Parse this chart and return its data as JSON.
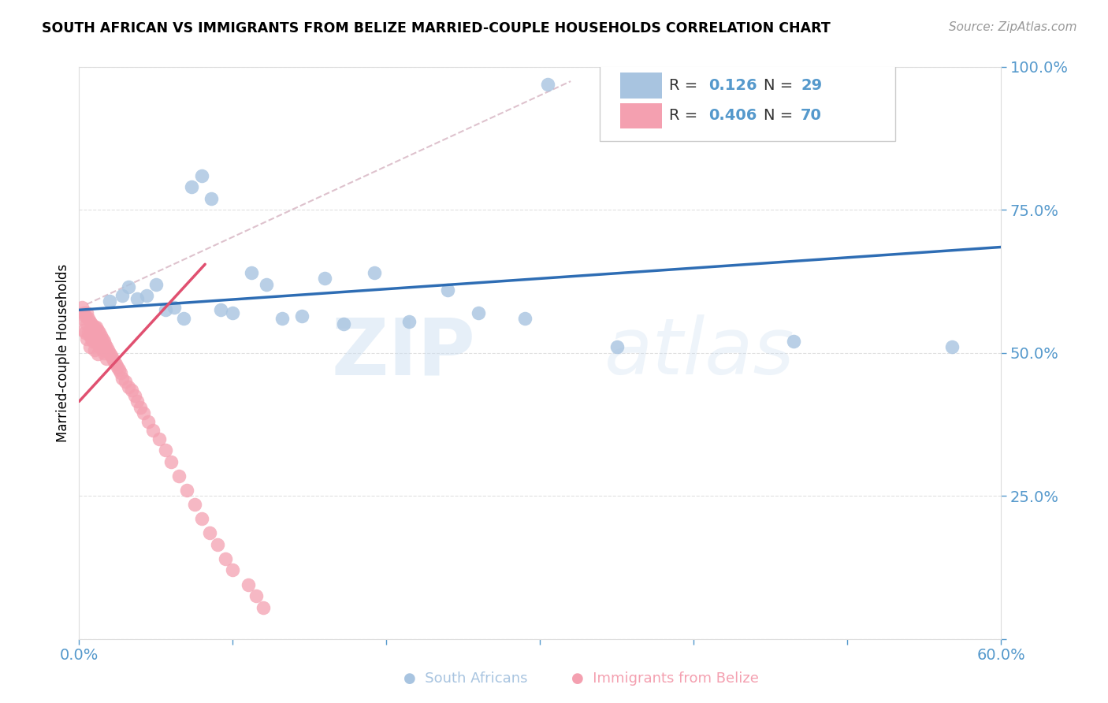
{
  "title": "SOUTH AFRICAN VS IMMIGRANTS FROM BELIZE MARRIED-COUPLE HOUSEHOLDS CORRELATION CHART",
  "source": "Source: ZipAtlas.com",
  "ylabel": "Married-couple Households",
  "xlim": [
    0.0,
    0.6
  ],
  "ylim": [
    0.0,
    1.0
  ],
  "xticks": [
    0.0,
    0.1,
    0.2,
    0.3,
    0.4,
    0.5,
    0.6
  ],
  "xticklabels": [
    "0.0%",
    "",
    "",
    "",
    "",
    "",
    "60.0%"
  ],
  "yticks": [
    0.0,
    0.25,
    0.5,
    0.75,
    1.0
  ],
  "yticklabels": [
    "",
    "25.0%",
    "50.0%",
    "75.0%",
    "100.0%"
  ],
  "legend_r1": "R =  0.126",
  "legend_n1": "N = 29",
  "legend_r2": "R =  0.406",
  "legend_n2": "N = 70",
  "blue_color": "#A8C4E0",
  "pink_color": "#F4A0B0",
  "trend_blue_color": "#2E6DB4",
  "trend_pink_color": "#E05070",
  "dash_color": "#D0A8B8",
  "axis_color": "#5599CC",
  "grid_color": "#CCCCCC",
  "watermark_zip": "ZIP",
  "watermark_atlas": "atlas",
  "sa_x": [
    0.02,
    0.028,
    0.032,
    0.038,
    0.044,
    0.05,
    0.056,
    0.062,
    0.068,
    0.073,
    0.08,
    0.086,
    0.092,
    0.1,
    0.112,
    0.122,
    0.132,
    0.145,
    0.16,
    0.172,
    0.192,
    0.215,
    0.24,
    0.26,
    0.29,
    0.305,
    0.35,
    0.465,
    0.568
  ],
  "sa_y": [
    0.59,
    0.6,
    0.615,
    0.595,
    0.6,
    0.62,
    0.575,
    0.58,
    0.56,
    0.79,
    0.81,
    0.77,
    0.575,
    0.57,
    0.64,
    0.62,
    0.56,
    0.565,
    0.63,
    0.55,
    0.64,
    0.555,
    0.61,
    0.57,
    0.56,
    0.97,
    0.51,
    0.52,
    0.51
  ],
  "belize_x": [
    0.002,
    0.002,
    0.003,
    0.003,
    0.004,
    0.004,
    0.005,
    0.005,
    0.005,
    0.006,
    0.006,
    0.007,
    0.007,
    0.007,
    0.008,
    0.008,
    0.009,
    0.009,
    0.01,
    0.01,
    0.01,
    0.011,
    0.011,
    0.012,
    0.012,
    0.012,
    0.013,
    0.013,
    0.014,
    0.014,
    0.015,
    0.015,
    0.016,
    0.016,
    0.017,
    0.018,
    0.018,
    0.019,
    0.02,
    0.021,
    0.022,
    0.023,
    0.024,
    0.025,
    0.026,
    0.027,
    0.028,
    0.03,
    0.032,
    0.034,
    0.036,
    0.038,
    0.04,
    0.042,
    0.045,
    0.048,
    0.052,
    0.056,
    0.06,
    0.065,
    0.07,
    0.075,
    0.08,
    0.085,
    0.09,
    0.095,
    0.1,
    0.11,
    0.115,
    0.12
  ],
  "belize_y": [
    0.58,
    0.56,
    0.57,
    0.54,
    0.565,
    0.535,
    0.57,
    0.55,
    0.525,
    0.56,
    0.535,
    0.555,
    0.53,
    0.51,
    0.55,
    0.525,
    0.545,
    0.52,
    0.545,
    0.525,
    0.505,
    0.545,
    0.52,
    0.54,
    0.52,
    0.498,
    0.535,
    0.51,
    0.53,
    0.51,
    0.525,
    0.505,
    0.52,
    0.5,
    0.515,
    0.51,
    0.49,
    0.505,
    0.5,
    0.495,
    0.49,
    0.485,
    0.48,
    0.475,
    0.47,
    0.465,
    0.455,
    0.45,
    0.44,
    0.435,
    0.425,
    0.415,
    0.405,
    0.395,
    0.38,
    0.365,
    0.35,
    0.33,
    0.31,
    0.285,
    0.26,
    0.235,
    0.21,
    0.185,
    0.165,
    0.14,
    0.12,
    0.095,
    0.075,
    0.055
  ],
  "figsize": [
    14.06,
    8.92
  ],
  "dpi": 100
}
